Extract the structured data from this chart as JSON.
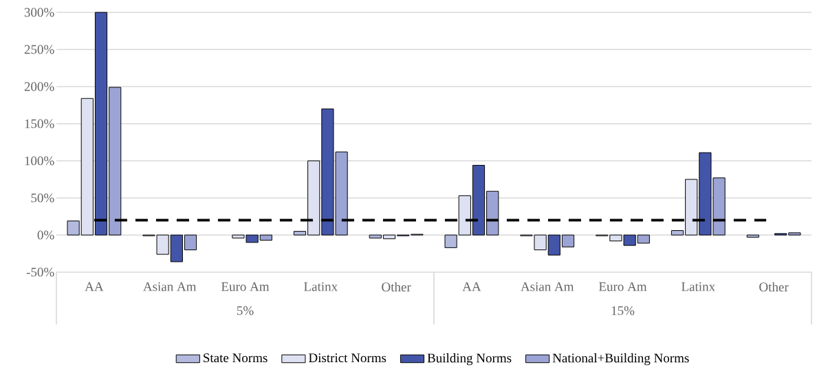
{
  "chart_data": {
    "type": "bar",
    "categories": [
      "AA",
      "Asian Am",
      "Euro Am",
      "Latinx",
      "Other",
      "AA",
      "Asian Am",
      "Euro Am",
      "Latinx",
      "Other"
    ],
    "series": [
      {
        "name": "State Norms",
        "color": "#b3bade",
        "values": [
          19,
          -1,
          0,
          5,
          -4,
          -17,
          -1,
          -1,
          6,
          -3
        ]
      },
      {
        "name": "District Norms",
        "color": "#dde1f1",
        "values": [
          184,
          -26,
          -4,
          100,
          -5,
          53,
          -20,
          -8,
          75,
          0
        ]
      },
      {
        "name": "Building Norms",
        "color": "#4355a8",
        "values": [
          300,
          -36,
          -10,
          170,
          -1,
          94,
          -27,
          -14,
          111,
          2
        ]
      },
      {
        "name": "National+Building Norms",
        "color": "#9ba4d4",
        "values": [
          199,
          -20,
          -7,
          112,
          1,
          59,
          -16,
          -11,
          77,
          3
        ]
      }
    ],
    "ylim": [
      -50,
      300
    ],
    "yticks": [
      {
        "value": -50,
        "label": "-50%"
      },
      {
        "value": 0,
        "label": "0%"
      },
      {
        "value": 50,
        "label": "50%"
      },
      {
        "value": 100,
        "label": "100%"
      },
      {
        "value": 150,
        "label": "150%"
      },
      {
        "value": 200,
        "label": "200%"
      },
      {
        "value": 250,
        "label": "250%"
      },
      {
        "value": 300,
        "label": "300%"
      }
    ],
    "ref_lines": [
      {
        "axis": "y",
        "value": 20,
        "color": "#000000",
        "line_style": "dashed"
      }
    ],
    "annotations": [
      "5%",
      "15%"
    ],
    "grid": "y",
    "legend": "bottom"
  }
}
